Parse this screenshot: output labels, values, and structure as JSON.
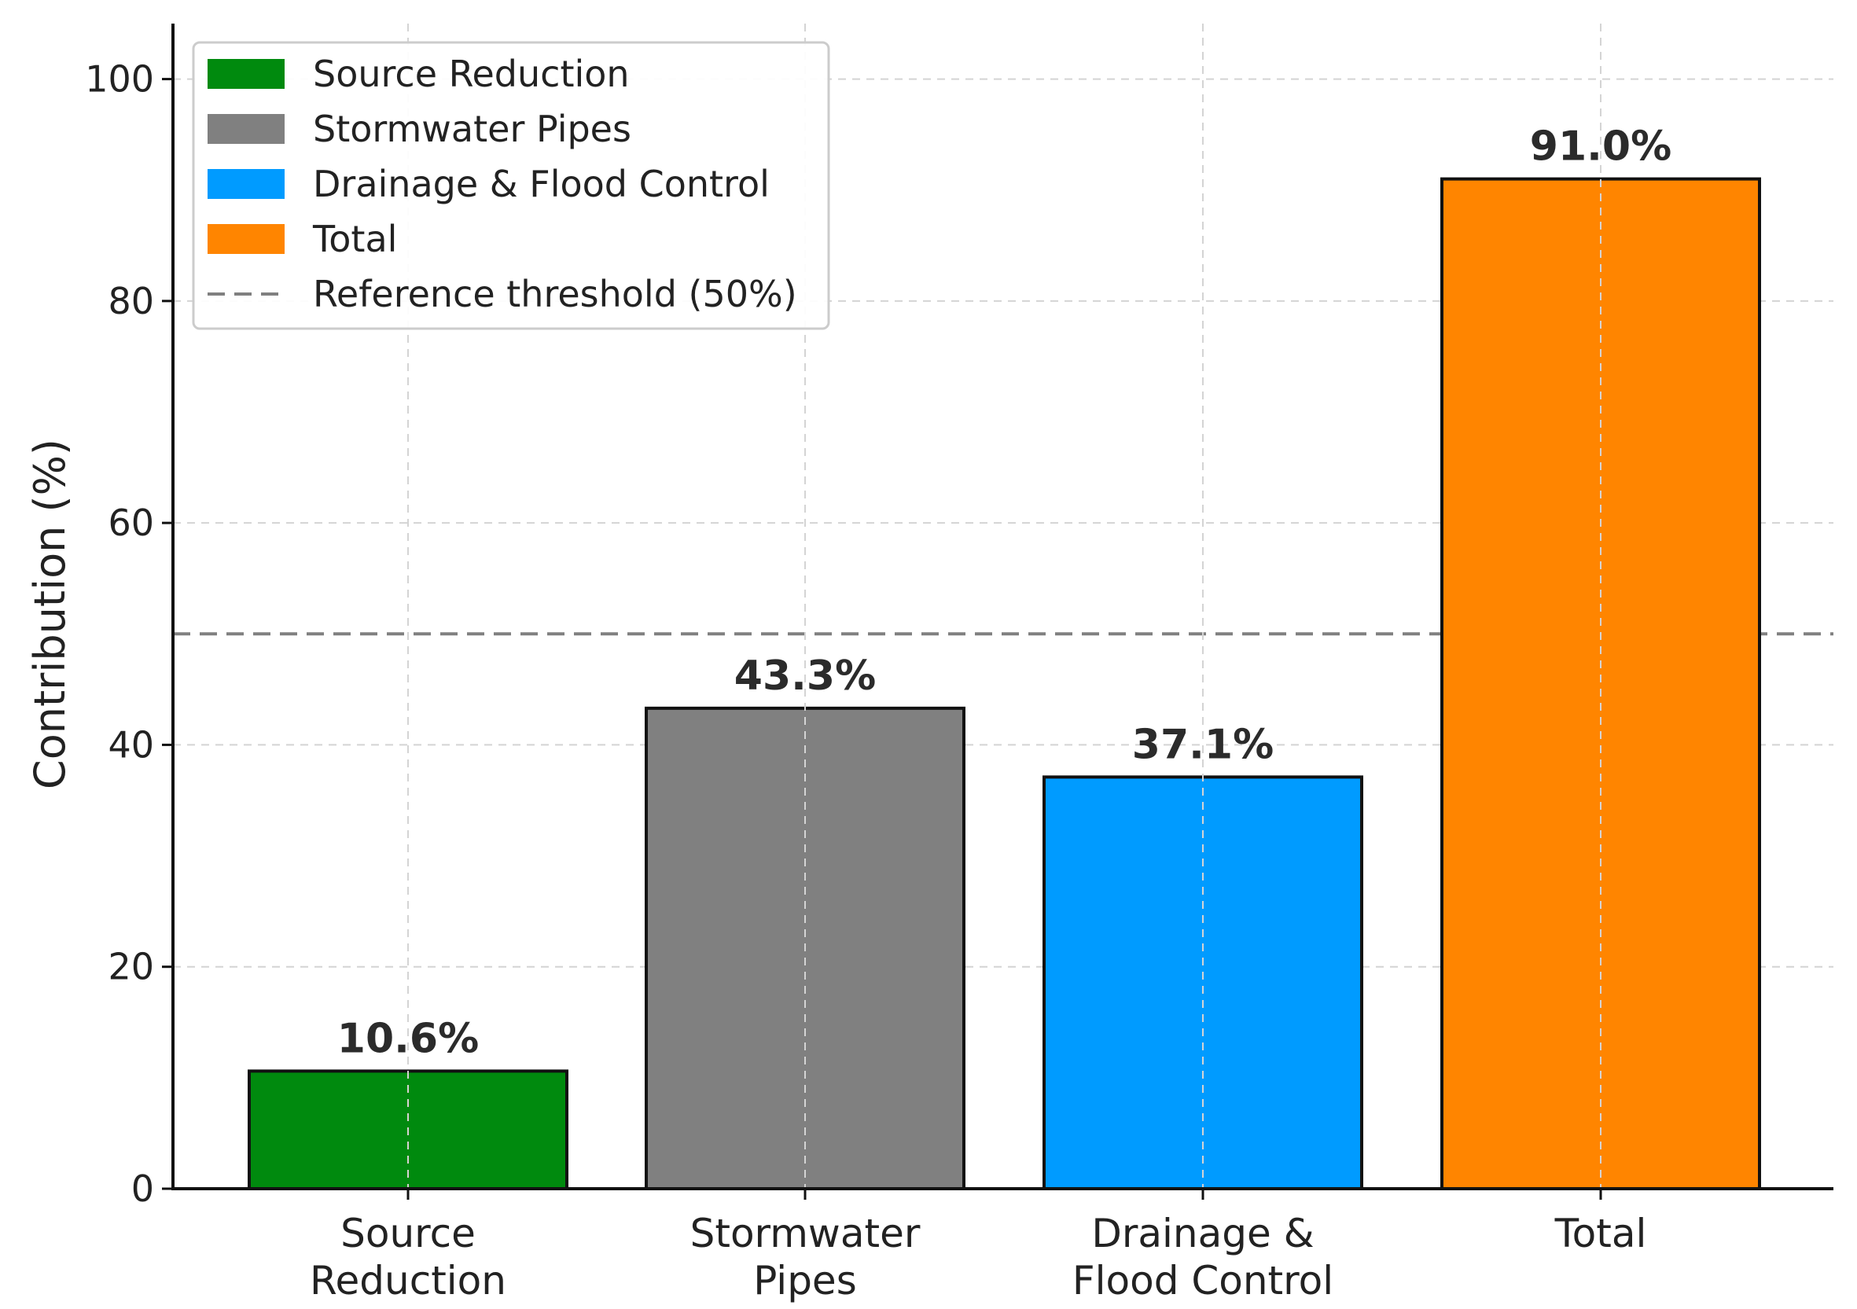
{
  "chart_data": {
    "type": "bar",
    "categories": [
      "Source Reduction",
      "Stormwater Pipes",
      "Drainage & Flood Control",
      "Total"
    ],
    "category_tick_lines": [
      [
        "Source",
        "Reduction"
      ],
      [
        "Stormwater",
        "Pipes"
      ],
      [
        "Drainage &",
        "Flood Control"
      ],
      [
        "Total"
      ]
    ],
    "values": [
      10.6,
      43.3,
      37.1,
      91.0
    ],
    "value_labels": [
      "10.6%",
      "43.3%",
      "37.1%",
      "91.0%"
    ],
    "colors": [
      "#008a0e",
      "#808080",
      "#009bff",
      "#ff8500"
    ],
    "title": "",
    "xlabel": "",
    "ylabel": "Contribution (%)",
    "ylim": [
      0,
      105
    ],
    "yticks": [
      0,
      20,
      40,
      60,
      80,
      100
    ],
    "grid": true,
    "reference_line": {
      "value": 50,
      "label": "Reference threshold (50%)",
      "color": "#808080",
      "style": "dashed"
    },
    "legend": {
      "placement": "top-left",
      "entries": [
        {
          "label": "Source Reduction",
          "kind": "patch",
          "color": "#008a0e"
        },
        {
          "label": "Stormwater Pipes",
          "kind": "patch",
          "color": "#808080"
        },
        {
          "label": "Drainage & Flood Control",
          "kind": "patch",
          "color": "#009bff"
        },
        {
          "label": "Total",
          "kind": "patch",
          "color": "#ff8500"
        },
        {
          "label": "Reference threshold (50%)",
          "kind": "dashed-line",
          "color": "#808080"
        }
      ]
    }
  }
}
